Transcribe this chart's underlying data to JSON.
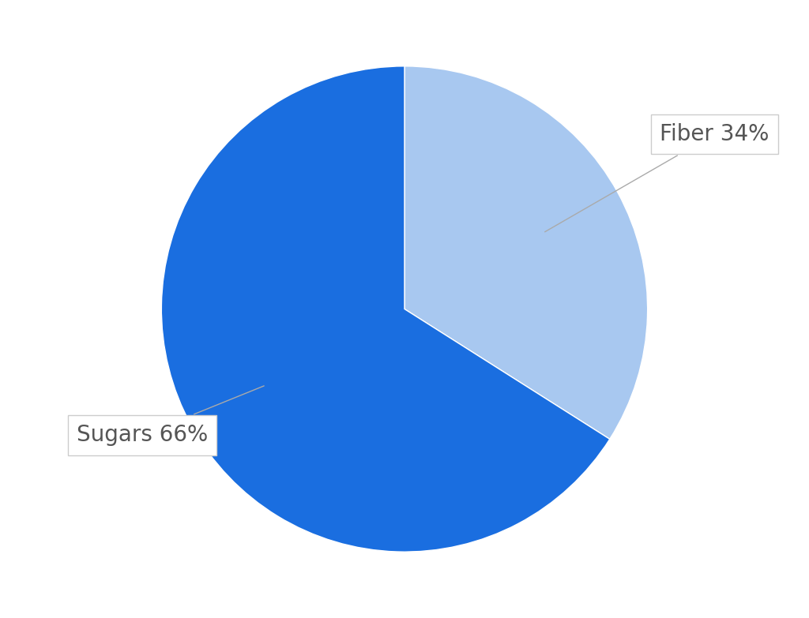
{
  "labels": [
    "Fiber",
    "Sugars"
  ],
  "values": [
    34,
    66
  ],
  "colors": [
    "#a8c8f0",
    "#1a6ee0"
  ],
  "label_texts": [
    "Fiber 34%",
    "Sugars 66%"
  ],
  "text_color": "#555555",
  "background_color": "#ffffff",
  "startangle": 90,
  "font_size": 20
}
